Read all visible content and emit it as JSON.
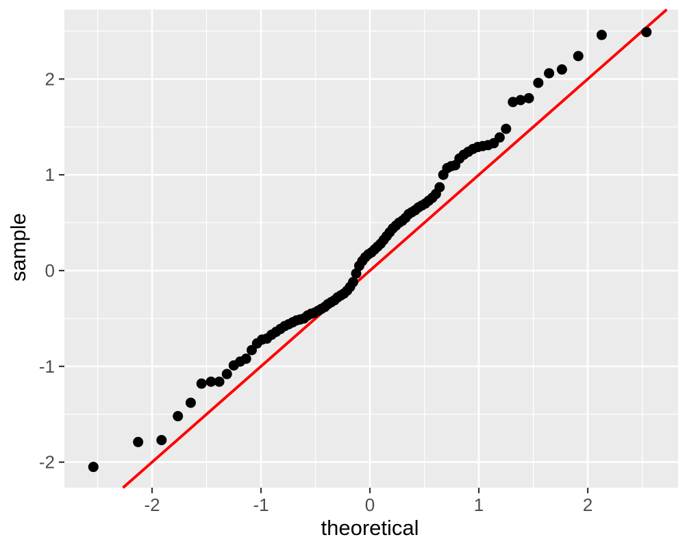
{
  "chart_data": {
    "type": "scatter",
    "title": "",
    "xlabel": "theoretical",
    "ylabel": "sample",
    "x_ticks": [
      -2,
      -1,
      0,
      1,
      2
    ],
    "y_ticks": [
      -2,
      -1,
      0,
      1,
      2
    ],
    "x_minor_ticks": [
      -2.5,
      -1.5,
      -0.5,
      0.5,
      1.5,
      2.5
    ],
    "y_minor_ticks": [
      -2.5,
      -1.5,
      -0.5,
      0.5,
      1.5,
      2.5
    ],
    "xlim": [
      -2.805,
      2.83
    ],
    "ylim": [
      -2.267,
      2.725
    ],
    "grid": true,
    "legend_position": "none",
    "panel_bg_color": "#EBEBEB",
    "grid_color": "#FFFFFF",
    "point_color": "#000000",
    "tick_mark_color": "#333333",
    "tick_label_color": "#4D4D4D",
    "reference_line": {
      "slope": 1,
      "intercept": 0,
      "color": "#FF0000"
    },
    "points": [
      [
        -2.539,
        -2.05
      ],
      [
        -2.128,
        -1.79
      ],
      [
        -1.913,
        -1.77
      ],
      [
        -1.763,
        -1.52
      ],
      [
        -1.645,
        -1.38
      ],
      [
        -1.546,
        -1.18
      ],
      [
        -1.459,
        -1.16
      ],
      [
        -1.383,
        -1.16
      ],
      [
        -1.313,
        -1.08
      ],
      [
        -1.25,
        -0.99
      ],
      [
        -1.191,
        -0.95
      ],
      [
        -1.137,
        -0.92
      ],
      [
        -1.085,
        -0.83
      ],
      [
        -1.036,
        -0.76
      ],
      [
        -0.99,
        -0.72
      ],
      [
        -0.946,
        -0.71
      ],
      [
        -0.903,
        -0.67
      ],
      [
        -0.862,
        -0.64
      ],
      [
        -0.822,
        -0.61
      ],
      [
        -0.783,
        -0.58
      ],
      [
        -0.746,
        -0.56
      ],
      [
        -0.71,
        -0.54
      ],
      [
        -0.674,
        -0.52
      ],
      [
        -0.64,
        -0.51
      ],
      [
        -0.606,
        -0.5
      ],
      [
        -0.573,
        -0.47
      ],
      [
        -0.54,
        -0.45
      ],
      [
        -0.508,
        -0.44
      ],
      [
        -0.477,
        -0.42
      ],
      [
        -0.446,
        -0.4
      ],
      [
        -0.415,
        -0.38
      ],
      [
        -0.385,
        -0.35
      ],
      [
        -0.356,
        -0.33
      ],
      [
        -0.326,
        -0.31
      ],
      [
        -0.297,
        -0.28
      ],
      [
        -0.268,
        -0.26
      ],
      [
        -0.239,
        -0.24
      ],
      [
        -0.21,
        -0.21
      ],
      [
        -0.182,
        -0.17
      ],
      [
        -0.154,
        -0.12
      ],
      [
        -0.126,
        -0.03
      ],
      [
        -0.098,
        0.05
      ],
      [
        -0.07,
        0.1
      ],
      [
        -0.042,
        0.14
      ],
      [
        -0.014,
        0.17
      ],
      [
        0.014,
        0.19
      ],
      [
        0.042,
        0.22
      ],
      [
        0.07,
        0.25
      ],
      [
        0.098,
        0.28
      ],
      [
        0.126,
        0.32
      ],
      [
        0.154,
        0.36
      ],
      [
        0.182,
        0.4
      ],
      [
        0.21,
        0.44
      ],
      [
        0.239,
        0.47
      ],
      [
        0.268,
        0.5
      ],
      [
        0.297,
        0.52
      ],
      [
        0.326,
        0.55
      ],
      [
        0.356,
        0.59
      ],
      [
        0.385,
        0.61
      ],
      [
        0.415,
        0.63
      ],
      [
        0.446,
        0.66
      ],
      [
        0.477,
        0.68
      ],
      [
        0.508,
        0.7
      ],
      [
        0.54,
        0.73
      ],
      [
        0.573,
        0.76
      ],
      [
        0.606,
        0.8
      ],
      [
        0.64,
        0.87
      ],
      [
        0.674,
        1.0
      ],
      [
        0.71,
        1.07
      ],
      [
        0.746,
        1.09
      ],
      [
        0.783,
        1.1
      ],
      [
        0.822,
        1.17
      ],
      [
        0.862,
        1.21
      ],
      [
        0.903,
        1.24
      ],
      [
        0.946,
        1.27
      ],
      [
        0.99,
        1.29
      ],
      [
        1.036,
        1.3
      ],
      [
        1.085,
        1.31
      ],
      [
        1.137,
        1.33
      ],
      [
        1.191,
        1.39
      ],
      [
        1.25,
        1.48
      ],
      [
        1.313,
        1.76
      ],
      [
        1.383,
        1.78
      ],
      [
        1.459,
        1.8
      ],
      [
        1.546,
        1.96
      ],
      [
        1.645,
        2.06
      ],
      [
        1.763,
        2.1
      ],
      [
        1.913,
        2.24
      ],
      [
        2.128,
        2.46
      ],
      [
        2.539,
        2.49
      ]
    ]
  }
}
